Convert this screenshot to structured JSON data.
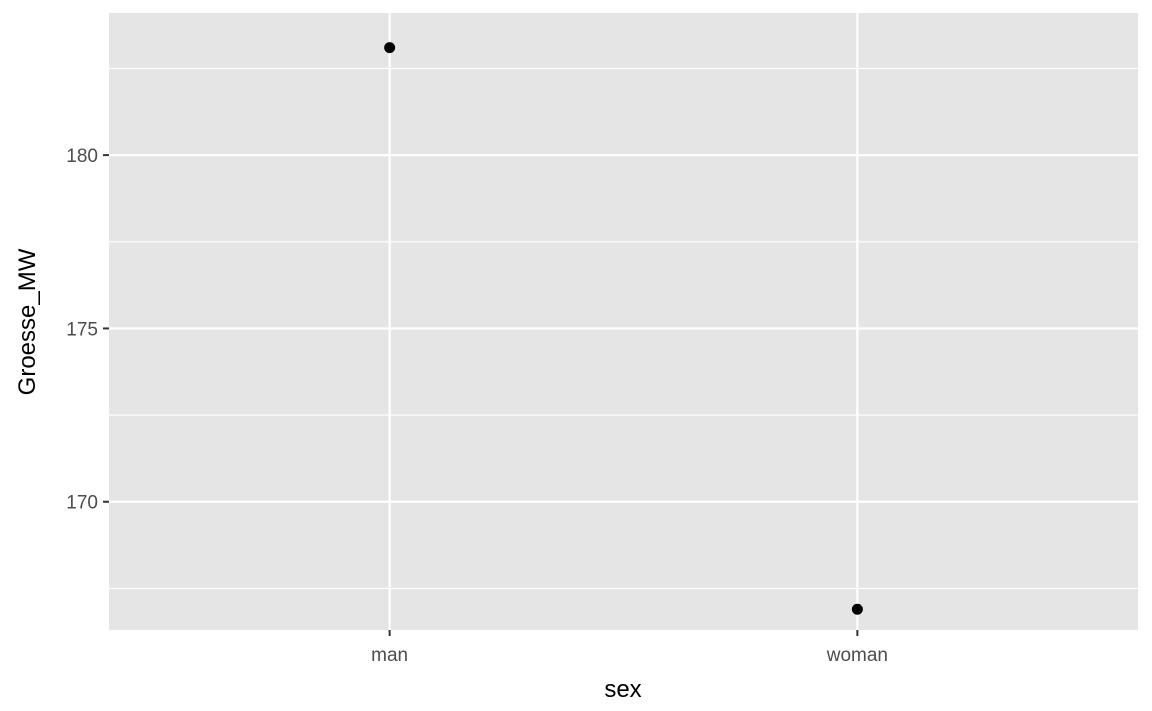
{
  "chart_data": {
    "type": "scatter",
    "title": "",
    "xlabel": "sex",
    "ylabel": "Groesse_MW",
    "categories": [
      "man",
      "woman"
    ],
    "series": [
      {
        "x": [
          "man",
          "woman"
        ],
        "values": [
          183.1,
          166.9
        ]
      }
    ],
    "ylim": [
      166.3,
      184.1
    ],
    "y_ticks": [
      170,
      175,
      180
    ],
    "y_tick_labels": [
      "170",
      "175",
      "180"
    ],
    "y_minor_ticks": [
      167.5,
      172.5,
      177.5,
      182.5
    ],
    "grid": true,
    "legend": "none",
    "colors": {
      "panel_background": "#e5e5e5",
      "grid": "#ffffff",
      "point": "#000000",
      "tick_mark": "#333333",
      "tick_label": "#4d4d4d"
    }
  }
}
